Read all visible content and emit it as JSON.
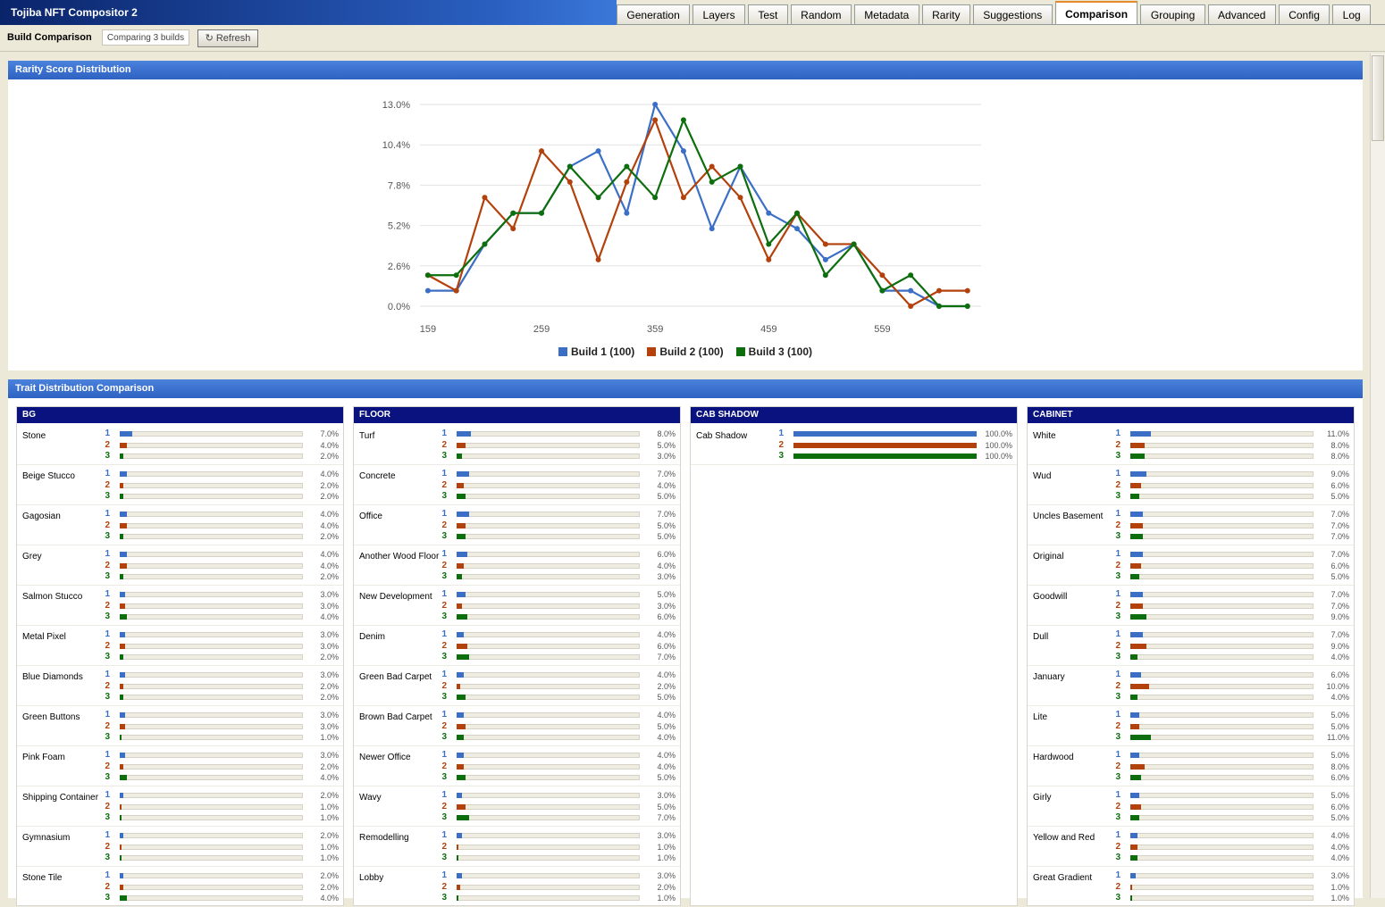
{
  "app_title": "Tojiba NFT Compositor 2",
  "tabs": [
    {
      "label": "Generation"
    },
    {
      "label": "Layers"
    },
    {
      "label": "Test"
    },
    {
      "label": "Random"
    },
    {
      "label": "Metadata"
    },
    {
      "label": "Rarity"
    },
    {
      "label": "Suggestions"
    },
    {
      "label": "Comparison",
      "active": true
    },
    {
      "label": "Grouping"
    },
    {
      "label": "Advanced"
    },
    {
      "label": "Config"
    },
    {
      "label": "Log"
    }
  ],
  "toolbar": {
    "title": "Build Comparison",
    "status": "Comparing 3 builds",
    "refresh": "Refresh"
  },
  "chart_data": {
    "type": "line",
    "title": "Rarity Score Distribution",
    "x": [
      159,
      184,
      209,
      234,
      259,
      284,
      309,
      334,
      359,
      384,
      409,
      434,
      459,
      484,
      509,
      534,
      559,
      584,
      609,
      634
    ],
    "series": [
      {
        "name": "Build 1 (100)",
        "color": "#3b6fc6",
        "values": [
          1,
          1,
          4,
          6,
          6,
          9,
          10,
          6,
          13,
          10,
          5,
          9,
          6,
          5,
          3,
          4,
          1,
          1,
          0,
          0
        ]
      },
      {
        "name": "Build 2 (100)",
        "color": "#b3410c",
        "values": [
          2,
          1,
          7,
          5,
          10,
          8,
          3,
          8,
          12,
          7,
          9,
          7,
          3,
          6,
          4,
          4,
          2,
          0,
          1,
          1
        ]
      },
      {
        "name": "Build 3 (100)",
        "color": "#0d6e0d",
        "values": [
          2,
          2,
          4,
          6,
          6,
          9,
          7,
          9,
          7,
          12,
          8,
          9,
          4,
          6,
          2,
          4,
          1,
          2,
          0,
          0
        ]
      }
    ],
    "xlim": [
      152,
      646
    ],
    "xticks": [
      159,
      259,
      359,
      459,
      559
    ],
    "ylim": [
      0,
      13
    ],
    "yticks": [
      {
        "value": 0,
        "label": "0.0%"
      },
      {
        "value": 2.6,
        "label": "2.6%"
      },
      {
        "value": 5.2,
        "label": "5.2%"
      },
      {
        "value": 7.8,
        "label": "7.8%"
      },
      {
        "value": 10.4,
        "label": "10.4%"
      },
      {
        "value": 13,
        "label": "13.0%"
      }
    ],
    "grid": true,
    "legend": "bottom"
  },
  "traits": {
    "title": "Trait Distribution Comparison",
    "build_labels": [
      "1",
      "2",
      "3"
    ],
    "xlim": [
      0,
      100
    ],
    "groups": [
      {
        "name": "BG",
        "traits": [
          {
            "name": "Stone",
            "values": [
              7,
              4,
              2
            ],
            "value_labels": [
              "7.0%",
              "4.0%",
              "2.0%"
            ]
          },
          {
            "name": "Beige Stucco",
            "values": [
              4,
              2,
              2
            ],
            "value_labels": [
              "4.0%",
              "2.0%",
              "2.0%"
            ]
          },
          {
            "name": "Gagosian",
            "values": [
              4,
              4,
              2
            ],
            "value_labels": [
              "4.0%",
              "4.0%",
              "2.0%"
            ]
          },
          {
            "name": "Grey",
            "values": [
              4,
              4,
              2
            ],
            "value_labels": [
              "4.0%",
              "4.0%",
              "2.0%"
            ]
          },
          {
            "name": "Salmon Stucco",
            "values": [
              3,
              3,
              4
            ],
            "value_labels": [
              "3.0%",
              "3.0%",
              "4.0%"
            ]
          },
          {
            "name": "Metal Pixel",
            "values": [
              3,
              3,
              2
            ],
            "value_labels": [
              "3.0%",
              "3.0%",
              "2.0%"
            ]
          },
          {
            "name": "Blue Diamonds",
            "values": [
              3,
              2,
              2
            ],
            "value_labels": [
              "3.0%",
              "2.0%",
              "2.0%"
            ]
          },
          {
            "name": "Green Buttons",
            "values": [
              3,
              3,
              1
            ],
            "value_labels": [
              "3.0%",
              "3.0%",
              "1.0%"
            ]
          },
          {
            "name": "Pink Foam",
            "values": [
              3,
              2,
              4
            ],
            "value_labels": [
              "3.0%",
              "2.0%",
              "4.0%"
            ]
          },
          {
            "name": "Shipping Container",
            "values": [
              2,
              1,
              1
            ],
            "value_labels": [
              "2.0%",
              "1.0%",
              "1.0%"
            ]
          },
          {
            "name": "Gymnasium",
            "values": [
              2,
              1,
              1
            ],
            "value_labels": [
              "2.0%",
              "1.0%",
              "1.0%"
            ]
          },
          {
            "name": "Stone Tile",
            "values": [
              2,
              2,
              4
            ],
            "value_labels": [
              "2.0%",
              "2.0%",
              "4.0%"
            ]
          }
        ]
      },
      {
        "name": "FLOOR",
        "traits": [
          {
            "name": "Turf",
            "values": [
              8,
              5,
              3
            ],
            "value_labels": [
              "8.0%",
              "5.0%",
              "3.0%"
            ]
          },
          {
            "name": "Concrete",
            "values": [
              7,
              4,
              5
            ],
            "value_labels": [
              "7.0%",
              "4.0%",
              "5.0%"
            ]
          },
          {
            "name": "Office",
            "values": [
              7,
              5,
              5
            ],
            "value_labels": [
              "7.0%",
              "5.0%",
              "5.0%"
            ]
          },
          {
            "name": "Another Wood Floor",
            "values": [
              6,
              4,
              3
            ],
            "value_labels": [
              "6.0%",
              "4.0%",
              "3.0%"
            ]
          },
          {
            "name": "New Development",
            "values": [
              5,
              3,
              6
            ],
            "value_labels": [
              "5.0%",
              "3.0%",
              "6.0%"
            ]
          },
          {
            "name": "Denim",
            "values": [
              4,
              6,
              7
            ],
            "value_labels": [
              "4.0%",
              "6.0%",
              "7.0%"
            ]
          },
          {
            "name": "Green Bad Carpet",
            "values": [
              4,
              2,
              5
            ],
            "value_labels": [
              "4.0%",
              "2.0%",
              "5.0%"
            ]
          },
          {
            "name": "Brown Bad Carpet",
            "values": [
              4,
              5,
              4
            ],
            "value_labels": [
              "4.0%",
              "5.0%",
              "4.0%"
            ]
          },
          {
            "name": "Newer Office",
            "values": [
              4,
              4,
              5
            ],
            "value_labels": [
              "4.0%",
              "4.0%",
              "5.0%"
            ]
          },
          {
            "name": "Wavy",
            "values": [
              3,
              5,
              7
            ],
            "value_labels": [
              "3.0%",
              "5.0%",
              "7.0%"
            ]
          },
          {
            "name": "Remodelling",
            "values": [
              3,
              1,
              1
            ],
            "value_labels": [
              "3.0%",
              "1.0%",
              "1.0%"
            ]
          },
          {
            "name": "Lobby",
            "values": [
              3,
              2,
              1
            ],
            "value_labels": [
              "3.0%",
              "2.0%",
              "1.0%"
            ]
          }
        ]
      },
      {
        "name": "CAB SHADOW",
        "traits": [
          {
            "name": "Cab Shadow",
            "values": [
              100,
              100,
              100
            ],
            "value_labels": [
              "100.0%",
              "100.0%",
              "100.0%"
            ]
          }
        ]
      },
      {
        "name": "CABINET",
        "traits": [
          {
            "name": "White",
            "values": [
              11,
              8,
              8
            ],
            "value_labels": [
              "11.0%",
              "8.0%",
              "8.0%"
            ]
          },
          {
            "name": "Wud",
            "values": [
              9,
              6,
              5
            ],
            "value_labels": [
              "9.0%",
              "6.0%",
              "5.0%"
            ]
          },
          {
            "name": "Uncles Basement",
            "values": [
              7,
              7,
              7
            ],
            "value_labels": [
              "7.0%",
              "7.0%",
              "7.0%"
            ]
          },
          {
            "name": "Original",
            "values": [
              7,
              6,
              5
            ],
            "value_labels": [
              "7.0%",
              "6.0%",
              "5.0%"
            ]
          },
          {
            "name": "Goodwill",
            "values": [
              7,
              7,
              9
            ],
            "value_labels": [
              "7.0%",
              "7.0%",
              "9.0%"
            ]
          },
          {
            "name": "Dull",
            "values": [
              7,
              9,
              4
            ],
            "value_labels": [
              "7.0%",
              "9.0%",
              "4.0%"
            ]
          },
          {
            "name": "January",
            "values": [
              6,
              10,
              4
            ],
            "value_labels": [
              "6.0%",
              "10.0%",
              "4.0%"
            ]
          },
          {
            "name": "Lite",
            "values": [
              5,
              5,
              11
            ],
            "value_labels": [
              "5.0%",
              "5.0%",
              "11.0%"
            ]
          },
          {
            "name": "Hardwood",
            "values": [
              5,
              8,
              6
            ],
            "value_labels": [
              "5.0%",
              "8.0%",
              "6.0%"
            ]
          },
          {
            "name": "Girly",
            "values": [
              5,
              6,
              5
            ],
            "value_labels": [
              "5.0%",
              "6.0%",
              "5.0%"
            ]
          },
          {
            "name": "Yellow and Red",
            "values": [
              4,
              4,
              4
            ],
            "value_labels": [
              "4.0%",
              "4.0%",
              "4.0%"
            ]
          },
          {
            "name": "Great Gradient",
            "values": [
              3,
              1,
              1
            ],
            "value_labels": [
              "3.0%",
              "1.0%",
              "1.0%"
            ]
          }
        ]
      }
    ]
  }
}
